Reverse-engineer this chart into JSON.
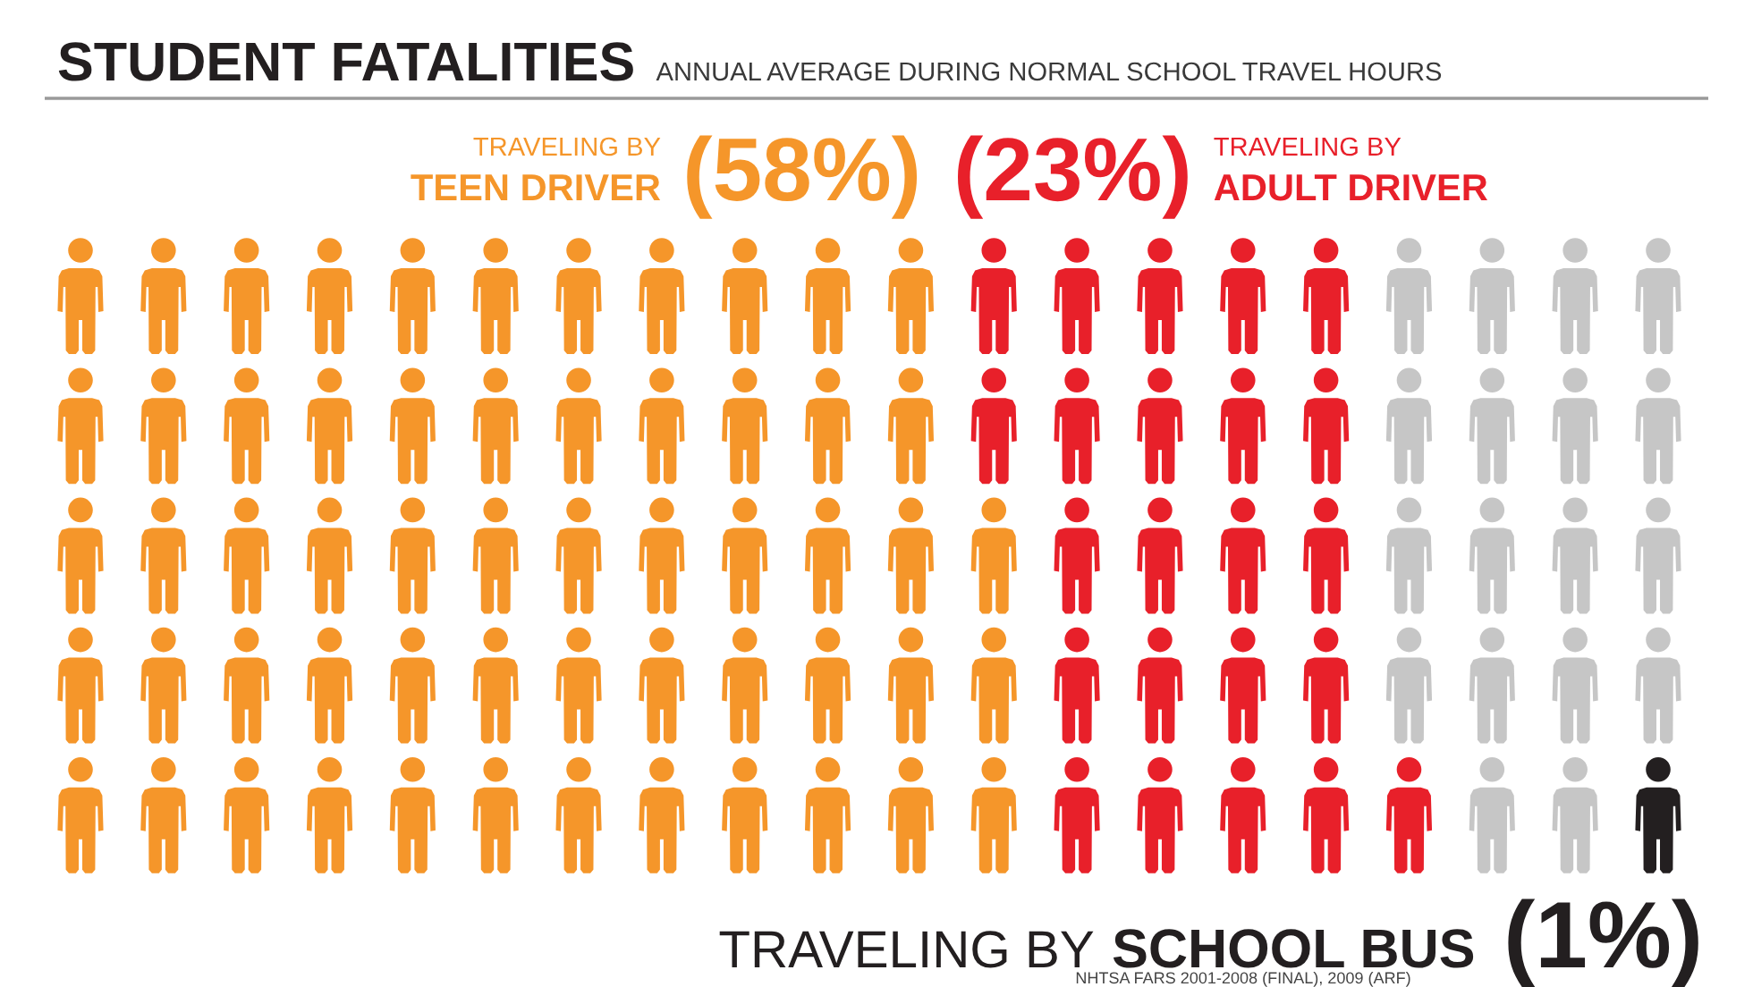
{
  "chart_data": {
    "type": "other",
    "title": "STUDENT FATALITIES",
    "subtitle": "ANNUAL AVERAGE DURING NORMAL SCHOOL TRAVEL HOURS",
    "categories": [
      "TRAVELING BY\nTEEN DRIVER",
      "TRAVELING BY\nADULT DRIVER",
      null,
      "TRAVELING BY\nSCHOOL BUS"
    ],
    "values": [
      58,
      23,
      null,
      1
    ],
    "colors": [
      "#f5962a",
      "#e8202a",
      "#c6c6c6",
      "#231f20"
    ],
    "value_labels": [
      "(58%)",
      "(23%)",
      null,
      "(1%)"
    ],
    "annotations": [
      "NHTSA FARS 2001-2008 (FINAL), 2009 (ARF)"
    ]
  }
}
